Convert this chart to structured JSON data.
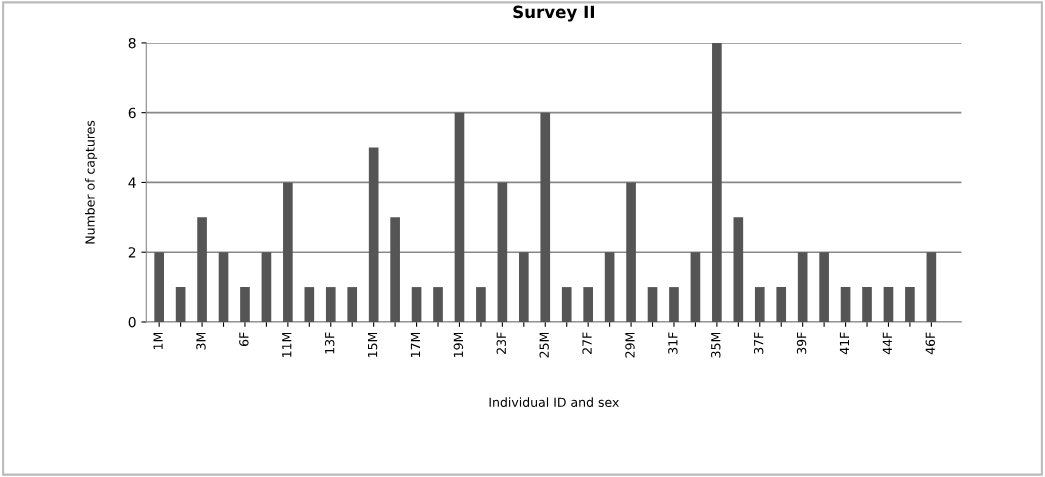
{
  "chart_data": {
    "type": "bar",
    "title": "Survey II",
    "xlabel": "Individual ID and sex",
    "ylabel": "Number of captures",
    "categories": [
      "1M",
      null,
      "3M",
      null,
      "6F",
      null,
      "11M",
      null,
      "13F",
      null,
      "15M",
      null,
      "17M",
      null,
      "19M",
      null,
      "23F",
      null,
      "25M",
      null,
      "27F",
      null,
      "29M",
      null,
      "31F",
      null,
      "35M",
      null,
      "37F",
      null,
      "39F",
      null,
      "41F",
      null,
      "44F",
      null,
      "46F"
    ],
    "values": [
      2,
      1,
      3,
      2,
      1,
      2,
      4,
      1,
      1,
      1,
      5,
      3,
      1,
      1,
      6,
      1,
      4,
      2,
      6,
      1,
      1,
      2,
      4,
      1,
      1,
      2,
      8,
      3,
      1,
      1,
      2,
      2,
      1,
      1,
      1,
      1,
      2
    ],
    "color": "#555555",
    "ylim": [
      0,
      8
    ],
    "yticks": [
      0,
      2,
      4,
      6,
      8
    ],
    "grid": "y",
    "legend": false
  }
}
